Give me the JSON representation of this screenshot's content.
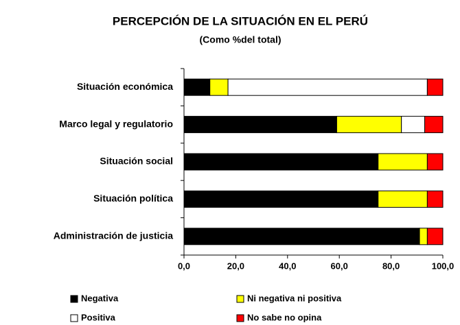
{
  "chart_data": {
    "type": "stacked-barh",
    "title": "PERCEPCIÓN DE LA SITUACIÓN EN EL PERÚ",
    "subtitle": "(Como %del total)",
    "categories": [
      "Situación económica",
      "Marco legal y regulatorio",
      "Situación social",
      "Situación política",
      "Administración de justicia"
    ],
    "series": [
      {
        "name": "Negativa",
        "color": "#000000",
        "values": [
          10,
          59,
          75,
          75,
          91
        ]
      },
      {
        "name": "Ni negativa ni positiva",
        "color": "#ffff00",
        "values": [
          7,
          25,
          19,
          19,
          3
        ]
      },
      {
        "name": "Positiva",
        "color": "#ffffff",
        "values": [
          77,
          9,
          0,
          0,
          0
        ]
      },
      {
        "name": "No sabe no opina",
        "color": "#ff0000",
        "values": [
          6,
          7,
          6,
          6,
          6
        ]
      }
    ],
    "xlim": [
      0,
      100
    ],
    "xticks": [
      {
        "value": 0,
        "label": "0,0"
      },
      {
        "value": 20,
        "label": "20,0"
      },
      {
        "value": 40,
        "label": "40,0"
      },
      {
        "value": 60,
        "label": "60,0"
      },
      {
        "value": 80,
        "label": "80,0"
      },
      {
        "value": 100,
        "label": "100,0"
      }
    ],
    "legend": "bottom"
  }
}
